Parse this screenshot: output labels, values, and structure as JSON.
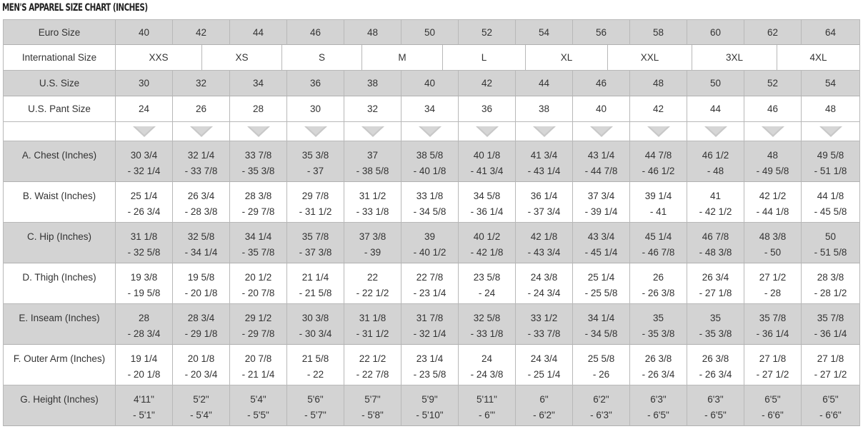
{
  "title": "MEN'S APPAREL SIZE CHART (INCHES)",
  "euro": {
    "label": "Euro Size",
    "values": [
      "40",
      "42",
      "44",
      "46",
      "48",
      "50",
      "52",
      "54",
      "56",
      "58",
      "60",
      "62",
      "64"
    ]
  },
  "international": {
    "label": "International Size",
    "values": [
      "XXS",
      "XS",
      "S",
      "M",
      "L",
      "XL",
      "XXL",
      "3XL",
      "4XL"
    ]
  },
  "us": {
    "label": "U.S. Size",
    "values": [
      "30",
      "32",
      "34",
      "36",
      "38",
      "40",
      "42",
      "44",
      "46",
      "48",
      "50",
      "52",
      "54"
    ]
  },
  "us_pant": {
    "label": "U.S. Pant Size",
    "values": [
      "24",
      "26",
      "28",
      "30",
      "32",
      "34",
      "36",
      "38",
      "40",
      "42",
      "44",
      "46",
      "48"
    ]
  },
  "measurements": [
    {
      "label": "A. Chest (Inches)",
      "values": [
        [
          "30 3/4",
          "- 32 1/4"
        ],
        [
          "32 1/4",
          "- 33 7/8"
        ],
        [
          "33 7/8",
          "- 35 3/8"
        ],
        [
          "35 3/8",
          "- 37"
        ],
        [
          "37",
          "- 38 5/8"
        ],
        [
          "38 5/8",
          "- 40 1/8"
        ],
        [
          "40 1/8",
          "- 41 3/4"
        ],
        [
          "41 3/4",
          "- 43 1/4"
        ],
        [
          "43 1/4",
          "- 44 7/8"
        ],
        [
          "44 7/8",
          "- 46 1/2"
        ],
        [
          "46 1/2",
          "- 48"
        ],
        [
          "48",
          "- 49 5/8"
        ],
        [
          "49 5/8",
          "- 51 1/8"
        ]
      ]
    },
    {
      "label": "B. Waist (Inches)",
      "values": [
        [
          "25 1/4",
          "- 26 3/4"
        ],
        [
          "26 3/4",
          "- 28 3/8"
        ],
        [
          "28 3/8",
          "- 29 7/8"
        ],
        [
          "29 7/8",
          "- 31 1/2"
        ],
        [
          "31 1/2",
          "- 33 1/8"
        ],
        [
          "33 1/8",
          "- 34 5/8"
        ],
        [
          "34 5/8",
          "- 36 1/4"
        ],
        [
          "36 1/4",
          "- 37 3/4"
        ],
        [
          "37 3/4",
          "- 39 1/4"
        ],
        [
          "39 1/4",
          "- 41"
        ],
        [
          "41",
          "- 42 1/2"
        ],
        [
          "42 1/2",
          "- 44 1/8"
        ],
        [
          "44 1/8",
          "- 45 5/8"
        ]
      ]
    },
    {
      "label": "C. Hip (Inches)",
      "values": [
        [
          "31 1/8",
          "- 32 5/8"
        ],
        [
          "32 5/8",
          "- 34 1/4"
        ],
        [
          "34 1/4",
          "- 35 7/8"
        ],
        [
          "35 7/8",
          "- 37 3/8"
        ],
        [
          "37 3/8",
          "- 39"
        ],
        [
          "39",
          "- 40 1/2"
        ],
        [
          "40 1/2",
          "- 42 1/8"
        ],
        [
          "42 1/8",
          "- 43 3/4"
        ],
        [
          "43 3/4",
          "- 45 1/4"
        ],
        [
          "45 1/4",
          "- 46 7/8"
        ],
        [
          "46 7/8",
          "- 48 3/8"
        ],
        [
          "48 3/8",
          "- 50"
        ],
        [
          "50",
          "- 51 5/8"
        ]
      ]
    },
    {
      "label": "D. Thigh (Inches)",
      "values": [
        [
          "19 3/8",
          "- 19 5/8"
        ],
        [
          "19 5/8",
          "- 20 1/8"
        ],
        [
          "20 1/2",
          "- 20 7/8"
        ],
        [
          "21 1/4",
          "- 21 5/8"
        ],
        [
          "22",
          "- 22 1/2"
        ],
        [
          "22 7/8",
          "- 23 1/4"
        ],
        [
          "23 5/8",
          "- 24"
        ],
        [
          "24 3/8",
          "- 24 3/4"
        ],
        [
          "25 1/4",
          "- 25 5/8"
        ],
        [
          "26",
          "- 26 3/8"
        ],
        [
          "26 3/4",
          "- 27 1/8"
        ],
        [
          "27 1/2",
          "- 28"
        ],
        [
          "28 3/8",
          "- 28 1/2"
        ]
      ]
    },
    {
      "label": "E. Inseam (Inches)",
      "values": [
        [
          "28",
          "- 28 3/4"
        ],
        [
          "28 3/4",
          "- 29 1/8"
        ],
        [
          "29 1/2",
          "- 29 7/8"
        ],
        [
          "30 3/8",
          "- 30 3/4"
        ],
        [
          "31 1/8",
          "- 31 1/2"
        ],
        [
          "31 7/8",
          "- 32 1/4"
        ],
        [
          "32 5/8",
          "- 33 1/8"
        ],
        [
          "33 1/2",
          "- 33 7/8"
        ],
        [
          "34 1/4",
          "- 34 5/8"
        ],
        [
          "35",
          "- 35 3/8"
        ],
        [
          "35",
          "- 35 3/8"
        ],
        [
          "35 7/8",
          "- 36 1/4"
        ],
        [
          "35 7/8",
          "- 36 1/4"
        ]
      ]
    },
    {
      "label": "F. Outer Arm (Inches)",
      "values": [
        [
          "19 1/4",
          "- 20 1/8"
        ],
        [
          "20 1/8",
          "- 20 3/4"
        ],
        [
          "20 7/8",
          "- 21 1/4"
        ],
        [
          "21 5/8",
          "- 22"
        ],
        [
          "22 1/2",
          "- 22 7/8"
        ],
        [
          "23 1/4",
          "- 23 5/8"
        ],
        [
          "24",
          "- 24 3/8"
        ],
        [
          "24 3/4",
          "- 25 1/4"
        ],
        [
          "25 5/8",
          "- 26"
        ],
        [
          "26 3/8",
          "- 26 3/4"
        ],
        [
          "26 3/8",
          "- 26 3/4"
        ],
        [
          "27 1/8",
          "- 27 1/2"
        ],
        [
          "27 1/8",
          "- 27 1/2"
        ]
      ]
    },
    {
      "label": "G. Height (Inches)",
      "values": [
        [
          "4'11\"",
          "- 5'1\""
        ],
        [
          "5'2\"",
          "- 5'4\""
        ],
        [
          "5'4\"",
          "- 5'5\""
        ],
        [
          "5'6\"",
          "- 5'7\""
        ],
        [
          "5'7\"",
          "- 5'8\""
        ],
        [
          "5'9\"",
          "- 5'10\""
        ],
        [
          "5'11\"",
          "- 6'\""
        ],
        [
          "6\"",
          "- 6'2\""
        ],
        [
          "6'2\"",
          "- 6'3\""
        ],
        [
          "6'3\"",
          "- 6'5\""
        ],
        [
          "6'3\"",
          "- 6'5\""
        ],
        [
          "6'5\"",
          "- 6'6\""
        ],
        [
          "6'5\"",
          "- 6'6\""
        ]
      ]
    }
  ],
  "colors": {
    "header_gray": "#d3d3d3",
    "border": "#b8b8b8",
    "text": "#333333"
  }
}
